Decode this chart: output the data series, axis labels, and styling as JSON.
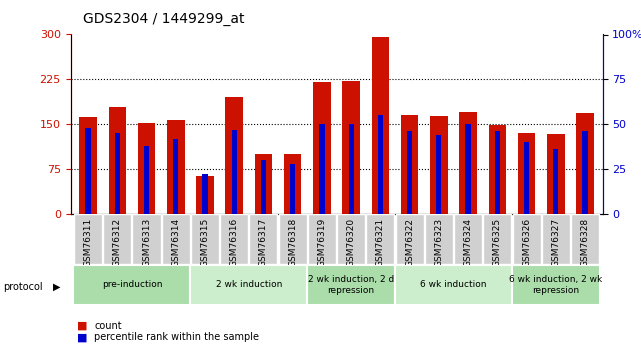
{
  "title": "GDS2304 / 1449299_at",
  "samples": [
    "GSM76311",
    "GSM76312",
    "GSM76313",
    "GSM76314",
    "GSM76315",
    "GSM76316",
    "GSM76317",
    "GSM76318",
    "GSM76319",
    "GSM76320",
    "GSM76321",
    "GSM76322",
    "GSM76323",
    "GSM76324",
    "GSM76325",
    "GSM76326",
    "GSM76327",
    "GSM76328"
  ],
  "counts": [
    162,
    178,
    152,
    157,
    63,
    195,
    100,
    100,
    220,
    222,
    295,
    165,
    163,
    170,
    148,
    135,
    133,
    168
  ],
  "percentiles": [
    48,
    45,
    38,
    42,
    22,
    47,
    30,
    28,
    50,
    50,
    55,
    46,
    44,
    50,
    46,
    40,
    36,
    46
  ],
  "bar_color": "#CC1100",
  "marker_color": "#0000CC",
  "left_ylim": [
    0,
    300
  ],
  "right_ylim": [
    0,
    100
  ],
  "left_yticks": [
    0,
    75,
    150,
    225,
    300
  ],
  "right_yticks": [
    0,
    25,
    50,
    75,
    100
  ],
  "right_yticklabels": [
    "0",
    "25",
    "50",
    "75",
    "100%"
  ],
  "grid_values": [
    75,
    150,
    225
  ],
  "protocols": [
    {
      "label": "pre-induction",
      "start": 0,
      "end": 4,
      "color": "#AADDAA"
    },
    {
      "label": "2 wk induction",
      "start": 4,
      "end": 8,
      "color": "#CCEECC"
    },
    {
      "label": "2 wk induction, 2 d\nrepression",
      "start": 8,
      "end": 11,
      "color": "#AADDAA"
    },
    {
      "label": "6 wk induction",
      "start": 11,
      "end": 15,
      "color": "#CCEECC"
    },
    {
      "label": "6 wk induction, 2 wk\nrepression",
      "start": 15,
      "end": 18,
      "color": "#AADDAA"
    }
  ],
  "legend_items": [
    {
      "label": "count",
      "color": "#CC1100"
    },
    {
      "label": "percentile rank within the sample",
      "color": "#0000CC"
    }
  ],
  "bg_color": "#FFFFFF",
  "title_fontsize": 10,
  "tick_label_fontsize": 6.5,
  "axis_label_color_left": "#CC1100",
  "axis_label_color_right": "#0000CC"
}
